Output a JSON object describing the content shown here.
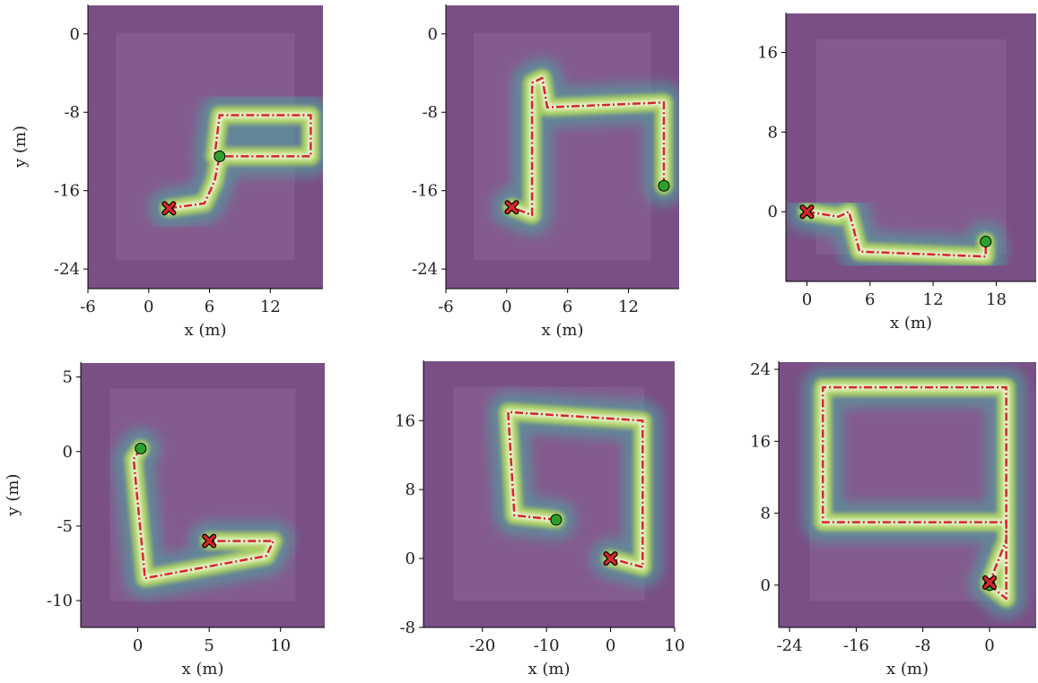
{
  "chart_data": [
    {
      "type": "line",
      "xlabel": "x (m)",
      "ylabel": "y (m)",
      "xlim": [
        -6,
        17.2
      ],
      "ylim": [
        -26,
        3
      ],
      "xticks": [
        -6,
        0,
        6,
        12
      ],
      "yticks": [
        0,
        -8,
        -16,
        -24
      ],
      "series": [
        {
          "color": "#d62728",
          "x": [
            2,
            5.5,
            6.5,
            7,
            16,
            16,
            7,
            6.5
          ],
          "y": [
            -17.8,
            -17.3,
            -15,
            -12.5,
            -12.5,
            -8.3,
            -8.3,
            -12.5
          ]
        }
      ],
      "start": {
        "x": 7,
        "y": -12.5,
        "color": "#2ca02c"
      },
      "goal": {
        "x": 2,
        "y": -17.8,
        "color": "#d62728"
      }
    },
    {
      "type": "line",
      "xlabel": "x (m)",
      "xlim": [
        -6,
        17
      ],
      "ylim": [
        -26,
        3
      ],
      "xticks": [
        -6,
        0,
        6,
        12
      ],
      "yticks": [
        0,
        -8,
        -16,
        -24
      ],
      "series": [
        {
          "color": "#d62728",
          "x": [
            15.5,
            15.5,
            4,
            3.5,
            2.5,
            2.5,
            0.5
          ],
          "y": [
            -15.5,
            -7,
            -7.5,
            -4.5,
            -5,
            -18.5,
            -17.7
          ]
        }
      ],
      "start": {
        "x": 15.5,
        "y": -15.5,
        "color": "#2ca02c"
      },
      "goal": {
        "x": 0.5,
        "y": -17.7,
        "color": "#d62728"
      }
    },
    {
      "type": "line",
      "xlabel": "x (m)",
      "xlim": [
        -2,
        21.8
      ],
      "ylim": [
        -7,
        20
      ],
      "xticks": [
        0,
        6,
        12,
        18
      ],
      "yticks": [
        16,
        8,
        0
      ],
      "series": [
        {
          "color": "#d62728",
          "x": [
            0,
            3,
            4,
            4.5,
            5,
            17,
            17
          ],
          "y": [
            0,
            -0.5,
            0,
            -2,
            -4,
            -4.5,
            -3
          ]
        }
      ],
      "start": {
        "x": 17,
        "y": -3,
        "color": "#2ca02c"
      },
      "goal": {
        "x": 0,
        "y": 0,
        "color": "#d62728"
      }
    },
    {
      "type": "line",
      "xlabel": "x (m)",
      "ylabel": "y (m)",
      "xlim": [
        -4,
        13.1
      ],
      "ylim": [
        -11.8,
        6
      ],
      "xticks": [
        0,
        5,
        10
      ],
      "yticks": [
        5,
        0,
        -5,
        -10
      ],
      "series": [
        {
          "color": "#d62728",
          "x": [
            0.2,
            -0.3,
            0.5,
            9,
            9.5,
            5
          ],
          "y": [
            0.2,
            -0.5,
            -8.5,
            -7,
            -6,
            -6
          ]
        }
      ],
      "start": {
        "x": 0.2,
        "y": 0.2,
        "color": "#2ca02c"
      },
      "goal": {
        "x": 5,
        "y": -6,
        "color": "#d62728"
      }
    },
    {
      "type": "line",
      "xlabel": "x (m)",
      "xlim": [
        -29.2,
        10
      ],
      "ylim": [
        -8,
        23
      ],
      "xticks": [
        -20,
        -10,
        0,
        10
      ],
      "yticks": [
        16,
        8,
        0,
        -8
      ],
      "series": [
        {
          "color": "#d62728",
          "x": [
            -8.5,
            -15,
            -16,
            5,
            5,
            0
          ],
          "y": [
            4.5,
            5,
            17,
            16,
            -1,
            0
          ]
        }
      ],
      "start": {
        "x": -8.5,
        "y": 4.5,
        "color": "#2ca02c"
      },
      "goal": {
        "x": 0,
        "y": 0,
        "color": "#d62728"
      }
    },
    {
      "type": "line",
      "xlabel": "x (m)",
      "xlim": [
        -25.3,
        5.6
      ],
      "ylim": [
        -4.7,
        24.9
      ],
      "xticks": [
        -24,
        -16,
        -8,
        0
      ],
      "yticks": [
        24,
        16,
        8,
        0
      ],
      "series": [
        {
          "color": "#d62728",
          "x": [
            0,
            2,
            2,
            -20,
            -20,
            2,
            2,
            0
          ],
          "y": [
            0,
            -1.5,
            7,
            7,
            22,
            22,
            5,
            0.3
          ]
        }
      ],
      "start": {
        "x": 0,
        "y": 0,
        "color": "#2ca02c"
      },
      "goal": {
        "x": 0,
        "y": 0.3,
        "color": "#d62728"
      }
    }
  ]
}
